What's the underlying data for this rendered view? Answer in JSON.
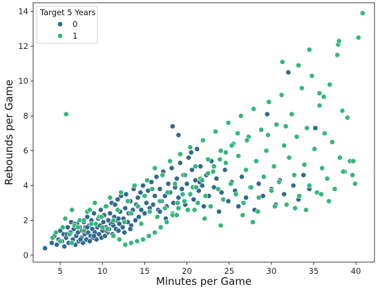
{
  "chart_data": {
    "type": "scatter",
    "title": "",
    "xlabel": "Minutes per Game",
    "ylabel": "Rebounds per Game",
    "xlim": [
      1.8,
      42.2
    ],
    "ylim": [
      -0.4,
      14.5
    ],
    "x_ticks": [
      5,
      10,
      15,
      20,
      25,
      30,
      35,
      40
    ],
    "y_ticks": [
      0,
      2,
      4,
      6,
      8,
      10,
      12,
      14
    ],
    "grid": false,
    "legend": {
      "title": "Target 5 Years",
      "placement": "top-left",
      "entries": [
        {
          "label": "0",
          "color": "#31688e"
        },
        {
          "label": "1",
          "color": "#35b779"
        }
      ]
    },
    "series": [
      {
        "name": "0",
        "color": "#31688e",
        "x": [
          3.2,
          4.0,
          4.3,
          4.6,
          4.8,
          5.0,
          5.2,
          5.4,
          5.5,
          5.7,
          5.9,
          6.0,
          6.2,
          6.3,
          6.5,
          6.6,
          6.8,
          6.9,
          7.0,
          7.1,
          7.2,
          7.3,
          7.4,
          7.5,
          7.6,
          7.7,
          7.8,
          7.9,
          8.0,
          8.1,
          8.2,
          8.3,
          8.4,
          8.5,
          8.6,
          8.7,
          8.8,
          8.9,
          9.0,
          9.1,
          9.2,
          9.3,
          9.4,
          9.5,
          9.6,
          9.7,
          9.8,
          9.9,
          10.0,
          10.1,
          10.2,
          10.3,
          10.4,
          10.5,
          10.6,
          10.7,
          10.8,
          10.9,
          11.0,
          11.1,
          11.2,
          11.3,
          11.4,
          11.5,
          11.6,
          11.7,
          11.8,
          11.9,
          12.0,
          12.1,
          12.2,
          12.4,
          12.5,
          12.7,
          12.8,
          13.0,
          13.1,
          13.3,
          13.4,
          13.6,
          13.7,
          13.9,
          14.0,
          14.2,
          14.3,
          14.5,
          14.6,
          14.8,
          15.0,
          15.2,
          15.4,
          15.6,
          15.8,
          16.0,
          16.2,
          16.4,
          16.6,
          16.8,
          17.0,
          17.2,
          17.4,
          17.6,
          17.8,
          18.0,
          18.2,
          18.4,
          18.6,
          18.8,
          19.0,
          19.2,
          19.4,
          19.6,
          19.8,
          20.0,
          20.2,
          20.4,
          20.6,
          20.8,
          21.0,
          21.2,
          21.4,
          21.6,
          21.8,
          22.0,
          22.3,
          22.6,
          22.9,
          23.2,
          23.5,
          23.8,
          24.1,
          24.5,
          24.9,
          25.3,
          25.7,
          26.1,
          26.5,
          27.0,
          27.5,
          28.0,
          28.5,
          29.0,
          29.5,
          30.0,
          30.5,
          31.0,
          31.5,
          32.0,
          32.6,
          33.2,
          33.8,
          34.5,
          35.2,
          21.5,
          20.5,
          19.0,
          18.3,
          17.5,
          16.8,
          9.0,
          8.2,
          7.4,
          6.7,
          5.8,
          10.5,
          11.2,
          11.9,
          12.6,
          13.3
        ],
        "y": [
          0.4,
          0.7,
          1.1,
          0.6,
          0.9,
          1.4,
          0.8,
          1.2,
          0.5,
          1.0,
          1.6,
          0.7,
          1.3,
          1.9,
          0.9,
          1.5,
          0.6,
          1.1,
          1.8,
          1.3,
          0.8,
          1.6,
          2.0,
          1.0,
          1.4,
          0.7,
          1.9,
          1.2,
          1.6,
          0.9,
          2.2,
          1.3,
          1.7,
          0.8,
          1.1,
          2.0,
          1.5,
          1.0,
          2.4,
          1.3,
          1.8,
          0.9,
          1.6,
          2.1,
          1.2,
          1.7,
          2.6,
          1.0,
          1.4,
          1.9,
          2.3,
          1.1,
          1.6,
          2.8,
          1.3,
          2.0,
          1.5,
          2.4,
          1.8,
          3.0,
          1.2,
          1.7,
          2.2,
          2.9,
          1.5,
          2.0,
          3.2,
          1.4,
          1.8,
          2.5,
          3.4,
          1.6,
          2.1,
          2.7,
          3.5,
          1.9,
          2.4,
          3.1,
          1.7,
          2.6,
          3.8,
          2.0,
          2.9,
          3.3,
          2.2,
          3.6,
          2.6,
          4.0,
          2.4,
          3.0,
          3.7,
          2.7,
          4.2,
          2.9,
          3.4,
          4.5,
          2.6,
          3.8,
          3.1,
          4.8,
          3.4,
          2.8,
          4.1,
          3.6,
          5.0,
          3.0,
          3.9,
          4.4,
          3.3,
          5.3,
          3.8,
          4.6,
          2.9,
          4.1,
          5.6,
          3.5,
          4.9,
          3.2,
          4.3,
          6.1,
          3.7,
          5.1,
          4.0,
          2.8,
          4.6,
          3.4,
          5.4,
          3.9,
          4.4,
          2.5,
          3.6,
          4.9,
          3.1,
          4.2,
          3.7,
          2.8,
          4.5,
          3.3,
          3.9,
          2.6,
          4.1,
          3.4,
          8.1,
          3.8,
          2.9,
          4.3,
          3.5,
          10.5,
          4.0,
          3.2,
          4.6,
          3.8,
          7.3,
          4.2,
          5.9,
          6.9,
          7.4,
          2.1,
          2.5,
          1.1,
          1.6,
          0.9,
          1.8,
          1.2,
          1.4,
          1.9,
          2.1,
          1.3,
          1.5
        ]
      },
      {
        "name": "1",
        "color": "#35b779",
        "x": [
          4.1,
          4.5,
          5.0,
          5.3,
          5.6,
          6.1,
          6.4,
          6.7,
          7.3,
          7.8,
          8.2,
          8.7,
          9.1,
          9.6,
          10.0,
          10.4,
          10.9,
          11.3,
          11.8,
          12.2,
          12.6,
          13.0,
          13.4,
          13.8,
          14.2,
          14.6,
          15.0,
          15.3,
          15.6,
          15.9,
          16.2,
          16.5,
          16.8,
          17.1,
          17.4,
          17.7,
          18.0,
          18.3,
          18.6,
          18.9,
          19.2,
          19.5,
          19.8,
          20.1,
          20.4,
          20.7,
          21.0,
          21.3,
          21.6,
          21.9,
          22.2,
          22.5,
          22.8,
          23.1,
          23.4,
          23.7,
          24.0,
          24.3,
          24.6,
          24.9,
          25.2,
          25.5,
          25.8,
          26.1,
          26.4,
          26.7,
          27.0,
          27.3,
          27.6,
          27.9,
          28.2,
          28.5,
          28.8,
          29.1,
          29.4,
          29.7,
          30.0,
          30.3,
          30.6,
          30.9,
          31.2,
          31.5,
          31.8,
          32.1,
          32.4,
          32.7,
          33.0,
          33.3,
          33.6,
          33.9,
          34.2,
          34.5,
          34.8,
          35.1,
          35.4,
          35.7,
          36.0,
          36.3,
          36.6,
          36.9,
          37.2,
          37.5,
          37.8,
          38.1,
          38.4,
          38.7,
          39.0,
          39.3,
          39.6,
          39.9,
          40.3,
          40.8,
          37.9,
          38.0,
          31.3,
          33.2,
          34.5,
          35.7,
          36.2,
          27.1,
          26.0,
          25.3,
          24.6,
          23.9,
          23.2,
          22.5,
          21.8,
          21.1,
          20.4,
          19.7,
          19.0,
          18.3,
          17.6,
          16.9,
          16.2,
          15.5,
          14.8,
          14.1,
          13.4,
          12.7,
          12.0,
          11.3,
          10.6,
          9.9,
          9.2,
          8.5,
          7.8,
          7.1,
          6.4,
          5.7,
          31.7,
          29.6,
          28.4,
          32.8,
          34.1,
          35.9,
          36.8,
          38.5,
          39.7,
          30.4,
          27.8,
          26.6,
          24.0,
          22.1,
          20.9,
          18.8
        ],
        "y": [
          1.0,
          1.3,
          0.8,
          1.6,
          2.1,
          1.2,
          2.6,
          1.7,
          2.0,
          1.4,
          2.5,
          1.8,
          3.0,
          2.2,
          1.6,
          2.8,
          3.3,
          2.0,
          2.6,
          3.6,
          1.9,
          3.1,
          2.4,
          4.0,
          2.8,
          1.8,
          3.4,
          4.3,
          2.5,
          3.8,
          5.0,
          2.2,
          3.1,
          4.6,
          2.7,
          3.6,
          5.4,
          2.4,
          4.1,
          3.0,
          5.8,
          3.5,
          4.6,
          2.6,
          6.2,
          3.9,
          5.1,
          3.0,
          4.4,
          6.6,
          3.4,
          5.5,
          2.8,
          4.8,
          7.1,
          3.8,
          6.0,
          3.2,
          5.3,
          7.6,
          4.1,
          6.4,
          3.5,
          5.7,
          8.0,
          3.0,
          4.9,
          6.8,
          3.9,
          8.4,
          5.4,
          3.3,
          7.2,
          4.5,
          6.0,
          8.8,
          3.7,
          5.1,
          7.5,
          4.2,
          9.2,
          6.3,
          2.9,
          5.6,
          8.1,
          4.6,
          6.8,
          3.4,
          9.6,
          5.2,
          7.3,
          4.0,
          10.3,
          6.1,
          3.6,
          8.6,
          5.0,
          7.0,
          4.4,
          9.8,
          6.5,
          3.8,
          11.5,
          5.6,
          8.3,
          4.8,
          7.9,
          5.4,
          4.6,
          4.1,
          12.5,
          13.9,
          12.1,
          12.3,
          11.1,
          10.9,
          11.8,
          9.3,
          9.1,
          6.6,
          7.0,
          6.3,
          5.9,
          5.5,
          5.1,
          4.7,
          4.3,
          3.9,
          3.5,
          3.1,
          2.7,
          2.3,
          1.9,
          1.6,
          1.3,
          1.1,
          0.9,
          0.8,
          0.7,
          0.6,
          0.9,
          1.1,
          1.5,
          2.2,
          1.8,
          2.6,
          2.0,
          1.6,
          0.7,
          8.1,
          7.4,
          6.9,
          2.5,
          2.7,
          2.6,
          3.5,
          3.1,
          4.8,
          5.4,
          2.8,
          1.9,
          2.3,
          1.7,
          2.1,
          2.6,
          2.3
        ]
      }
    ]
  }
}
